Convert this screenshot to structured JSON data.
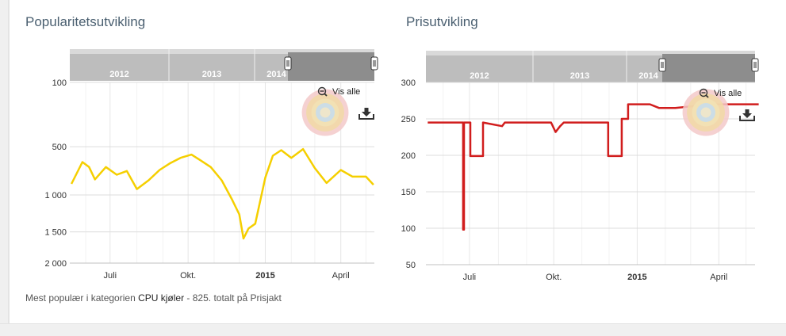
{
  "page": {
    "caption_prefix": "Mest populær i kategorien ",
    "caption_category": "CPU kjøler",
    "caption_suffix": " - 825. totalt på Prisjakt"
  },
  "chart_data": [
    {
      "type": "line",
      "title": "Popularitetsutvikling",
      "y_reversed": true,
      "y_scale": "sqrt",
      "ylim": [
        100,
        2000
      ],
      "y_ticks": [
        "100",
        "500",
        "1 000",
        "1 500",
        "2 000"
      ],
      "y_tick_values": [
        100,
        500,
        1000,
        1500,
        2000
      ],
      "x_ticks": [
        "Juli",
        "Okt.",
        "2015",
        "April"
      ],
      "x_tick_bold": [
        false,
        false,
        true,
        false
      ],
      "navigator_years": [
        "2012",
        "2013",
        "2014"
      ],
      "zoom_label": "Vis alle",
      "color": "#f5cf00",
      "series": [
        {
          "x": [
            "2014-05-15",
            "2014-05-28",
            "2014-06-05",
            "2014-06-12",
            "2014-06-25",
            "2014-07-08",
            "2014-07-20",
            "2014-08-01",
            "2014-08-15",
            "2014-08-28",
            "2014-09-10",
            "2014-09-22",
            "2014-10-05",
            "2014-10-15",
            "2014-10-28",
            "2014-11-10",
            "2014-11-22",
            "2014-12-01",
            "2014-12-06",
            "2014-12-12",
            "2014-12-20",
            "2015-01-01",
            "2015-01-10",
            "2015-01-20",
            "2015-02-01",
            "2015-02-15",
            "2015-03-01",
            "2015-03-15",
            "2015-04-01",
            "2015-04-15",
            "2015-05-01",
            "2015-05-10"
          ],
          "values": [
            870,
            640,
            690,
            820,
            690,
            770,
            730,
            930,
            830,
            720,
            650,
            600,
            570,
            620,
            690,
            830,
            1050,
            1250,
            1600,
            1450,
            1380,
            800,
            580,
            530,
            600,
            520,
            700,
            860,
            720,
            790,
            790,
            880
          ]
        }
      ]
    },
    {
      "type": "line",
      "title": "Prisutvikling",
      "ylim": [
        50,
        300
      ],
      "y_ticks": [
        "50",
        "100",
        "150",
        "200",
        "250",
        "300"
      ],
      "y_tick_values": [
        50,
        100,
        150,
        200,
        250,
        300
      ],
      "x_ticks": [
        "Juli",
        "Okt.",
        "2015",
        "April"
      ],
      "x_tick_bold": [
        false,
        false,
        true,
        false
      ],
      "navigator_years": [
        "2012",
        "2013",
        "2014"
      ],
      "zoom_label": "Vis alle",
      "color": "#d11d1d",
      "series": [
        {
          "x": [
            "2014-05-15",
            "2014-06-23",
            "2014-06-23",
            "2014-06-24",
            "2014-06-24",
            "2014-07-01",
            "2014-07-01",
            "2014-07-15",
            "2014-07-15",
            "2014-08-05",
            "2014-08-08",
            "2014-09-28",
            "2014-10-03",
            "2014-10-08",
            "2014-10-12",
            "2014-11-30",
            "2014-11-30",
            "2014-12-15",
            "2014-12-15",
            "2014-12-22",
            "2014-12-22",
            "2015-01-15",
            "2015-01-25",
            "2015-02-12",
            "2015-03-25",
            "2015-05-15"
          ],
          "values": [
            245,
            245,
            98,
            98,
            245,
            245,
            199,
            199,
            245,
            240,
            245,
            245,
            232,
            240,
            245,
            245,
            199,
            199,
            250,
            250,
            270,
            270,
            265,
            265,
            270,
            270
          ]
        }
      ]
    }
  ]
}
